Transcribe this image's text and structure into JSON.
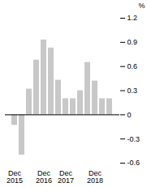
{
  "chart_data": {
    "type": "bar",
    "ylabel": "%",
    "categories": [
      "Dec\n2015",
      null,
      null,
      null,
      "Dec\n2016",
      null,
      null,
      "Dec\n2017",
      null,
      null,
      null,
      "Dec\n2018",
      null,
      null
    ],
    "values": [
      -0.13,
      -0.5,
      0.32,
      0.68,
      0.93,
      0.83,
      0.43,
      0.2,
      0.2,
      0.3,
      0.65,
      0.42,
      0.2,
      0.2
    ],
    "color": "#c8c8c8",
    "ylim": [
      -0.6,
      1.2
    ],
    "yticks": [
      -0.6,
      -0.3,
      0,
      0.3,
      0.6,
      0.9,
      1.2
    ],
    "grid": false
  }
}
